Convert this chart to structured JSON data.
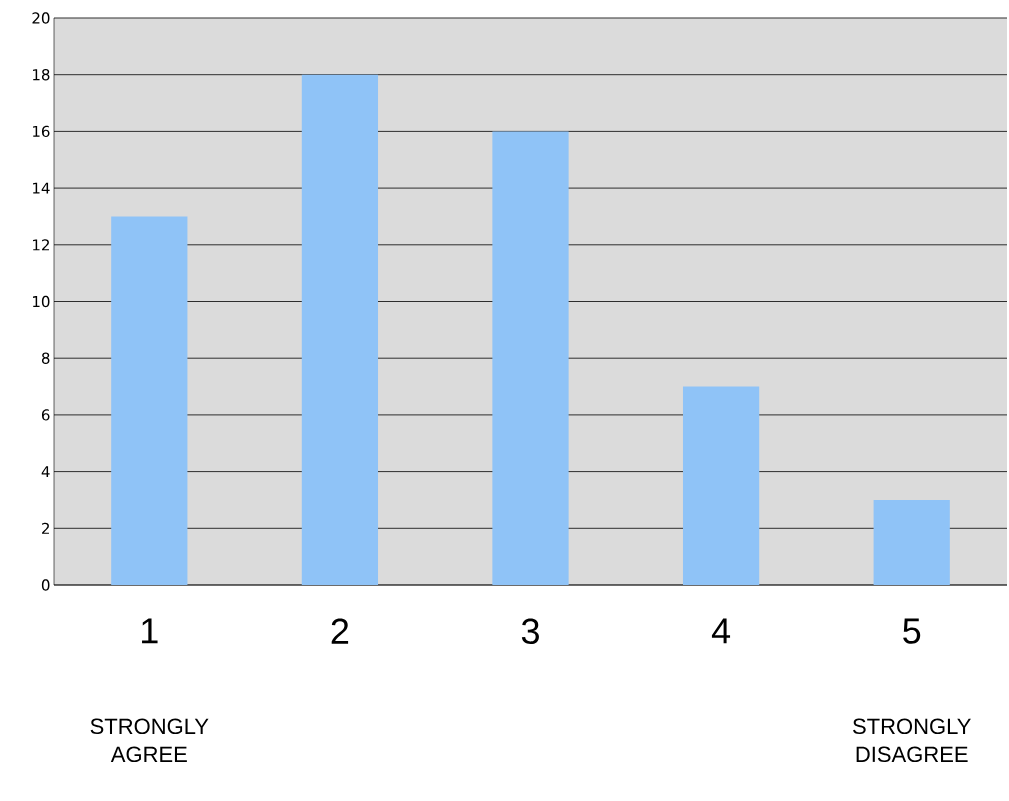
{
  "chart_data": {
    "type": "bar",
    "categories": [
      "1",
      "2",
      "3",
      "4",
      "5"
    ],
    "values": [
      13,
      18,
      16,
      7,
      3
    ],
    "color": "#8fc3f7",
    "ylim": [
      0,
      20
    ],
    "yticks": [
      0,
      2,
      4,
      6,
      8,
      10,
      12,
      14,
      16,
      18,
      20
    ],
    "grid": "y",
    "annotations": [
      "STRONGLY AGREE",
      "STRONGLY DISAGREE"
    ]
  }
}
